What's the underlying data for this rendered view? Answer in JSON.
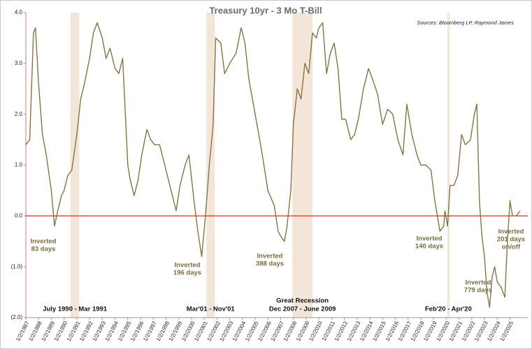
{
  "chart_data": {
    "type": "line",
    "title": "Treasury 10yr - 3 Mo T-Bill",
    "source": "Sources: Bloomberg LP, Raymond James",
    "x": [
      1987.0,
      1987.3,
      1987.6,
      1987.75,
      1988.0,
      1988.3,
      1988.6,
      1989.0,
      1989.25,
      1989.5,
      1989.8,
      1990.0,
      1990.3,
      1990.6,
      1991.0,
      1991.3,
      1991.6,
      1992.0,
      1992.3,
      1992.6,
      1993.0,
      1993.3,
      1993.6,
      1994.0,
      1994.3,
      1994.6,
      1995.0,
      1995.2,
      1995.5,
      1995.8,
      1996.1,
      1996.5,
      1996.8,
      1997.1,
      1997.5,
      1997.8,
      1998.1,
      1998.5,
      1998.8,
      1999.1,
      1999.5,
      1999.8,
      2000.2,
      2000.5,
      2000.8,
      2001.1,
      2001.4,
      2001.7,
      2001.9,
      2002.3,
      2002.6,
      2003.0,
      2003.5,
      2003.9,
      2004.2,
      2004.5,
      2005.0,
      2005.5,
      2006.0,
      2006.5,
      2006.8,
      2007.0,
      2007.3,
      2007.5,
      2007.8,
      2008.0,
      2008.3,
      2008.6,
      2008.9,
      2009.2,
      2009.5,
      2009.8,
      2010.0,
      2010.3,
      2010.6,
      2010.9,
      2011.2,
      2011.5,
      2011.8,
      2012.1,
      2012.5,
      2012.8,
      2013.1,
      2013.5,
      2013.9,
      2014.2,
      2014.6,
      2015.0,
      2015.4,
      2015.8,
      2016.2,
      2016.6,
      2016.9,
      2017.3,
      2017.7,
      2018.0,
      2018.4,
      2018.8,
      2019.1,
      2019.5,
      2019.8,
      2019.9,
      2020.1,
      2020.3,
      2020.6,
      2020.9,
      2021.2,
      2021.5,
      2021.9,
      2022.2,
      2022.4,
      2022.6,
      2022.8,
      2023.0,
      2023.2,
      2023.4,
      2023.6,
      2023.8,
      2024.0,
      2024.3,
      2024.6,
      2024.8,
      2025.0,
      2025.2,
      2025.5,
      2025.8
    ],
    "series": [
      {
        "name": "Treasury 10yr - 3 Mo T-Bill",
        "color": "#857443",
        "values": [
          1.4,
          1.5,
          3.6,
          3.7,
          2.6,
          1.6,
          1.2,
          0.5,
          -0.2,
          0.1,
          0.4,
          0.5,
          0.8,
          0.9,
          1.6,
          2.3,
          2.6,
          3.1,
          3.6,
          3.8,
          3.5,
          3.1,
          3.3,
          2.9,
          2.8,
          3.1,
          1.0,
          0.7,
          0.4,
          0.7,
          1.2,
          1.7,
          1.5,
          1.4,
          1.4,
          1.1,
          0.8,
          0.4,
          0.1,
          0.6,
          1.0,
          1.2,
          0.3,
          -0.3,
          -0.8,
          0.0,
          1.0,
          1.8,
          3.5,
          3.4,
          2.8,
          3.0,
          3.2,
          3.7,
          3.4,
          2.7,
          2.0,
          1.3,
          0.5,
          0.2,
          -0.3,
          -0.4,
          -0.5,
          -0.2,
          0.5,
          1.8,
          2.5,
          2.3,
          3.0,
          2.8,
          3.6,
          3.5,
          3.7,
          3.8,
          2.8,
          3.2,
          3.4,
          2.9,
          1.9,
          1.9,
          1.5,
          1.6,
          1.9,
          2.5,
          2.9,
          2.7,
          2.4,
          1.8,
          2.1,
          2.0,
          1.5,
          1.2,
          2.2,
          1.6,
          1.2,
          1.0,
          1.0,
          0.9,
          0.3,
          -0.3,
          -0.2,
          0.1,
          -0.2,
          0.6,
          0.6,
          0.8,
          1.6,
          1.4,
          1.5,
          2.0,
          2.2,
          0.3,
          -0.4,
          -0.8,
          -1.5,
          -1.8,
          -1.2,
          -1.0,
          -1.3,
          -1.4,
          -1.6,
          -0.5,
          0.3,
          0.0,
          0.0,
          0.1
        ]
      }
    ],
    "xlim": [
      1987,
      2026.4
    ],
    "xticks": [
      {
        "value": 1987,
        "label": "1/2/1987"
      },
      {
        "value": 1988,
        "label": "1/2/1988"
      },
      {
        "value": 1989,
        "label": "1/2/1989"
      },
      {
        "value": 1990,
        "label": "1/2/1990"
      },
      {
        "value": 1991,
        "label": "1/2/1991"
      },
      {
        "value": 1992,
        "label": "1/2/1992"
      },
      {
        "value": 1993,
        "label": "1/2/1993"
      },
      {
        "value": 1994,
        "label": "1/2/1994"
      },
      {
        "value": 1995,
        "label": "1/2/1995"
      },
      {
        "value": 1996,
        "label": "1/2/1996"
      },
      {
        "value": 1997,
        "label": "1/2/1997"
      },
      {
        "value": 1998,
        "label": "1/2/1998"
      },
      {
        "value": 1999,
        "label": "1/2/1999"
      },
      {
        "value": 2000,
        "label": "1/2/2000"
      },
      {
        "value": 2001,
        "label": "1/2/2001"
      },
      {
        "value": 2002,
        "label": "1/2/2002"
      },
      {
        "value": 2003,
        "label": "1/2/2003"
      },
      {
        "value": 2004,
        "label": "1/2/2004"
      },
      {
        "value": 2005,
        "label": "1/2/2005"
      },
      {
        "value": 2006,
        "label": "1/2/2006"
      },
      {
        "value": 2007,
        "label": "1/2/2007"
      },
      {
        "value": 2008,
        "label": "1/2/2008"
      },
      {
        "value": 2009,
        "label": "1/2/2009"
      },
      {
        "value": 2010,
        "label": "1/2/2010"
      },
      {
        "value": 2011,
        "label": "1/2/2011"
      },
      {
        "value": 2012,
        "label": "1/2/2012"
      },
      {
        "value": 2013,
        "label": "1/2/2013"
      },
      {
        "value": 2014,
        "label": "1/2/2014"
      },
      {
        "value": 2015,
        "label": "1/2/2015"
      },
      {
        "value": 2016,
        "label": "1/2/2016"
      },
      {
        "value": 2017,
        "label": "1/2/2017"
      },
      {
        "value": 2018,
        "label": "1/2/2018"
      },
      {
        "value": 2019,
        "label": "1/2/2019"
      },
      {
        "value": 2020,
        "label": "1/2/2020"
      },
      {
        "value": 2021,
        "label": "1/2/2021"
      },
      {
        "value": 2022,
        "label": "1/2/2022"
      },
      {
        "value": 2023,
        "label": "1/2/2023"
      },
      {
        "value": 2024,
        "label": "1/2/2024"
      },
      {
        "value": 2025,
        "label": "1/2/2025"
      }
    ],
    "ylim": [
      -2,
      4
    ],
    "yticks": [
      {
        "value": 4,
        "label": "4.0"
      },
      {
        "value": 3,
        "label": "3.0"
      },
      {
        "value": 2,
        "label": "2.0"
      },
      {
        "value": 1,
        "label": "1.0"
      },
      {
        "value": 0,
        "label": "0.0"
      },
      {
        "value": -1,
        "label": "(1.0)"
      },
      {
        "value": -2,
        "label": "(2.0)"
      }
    ],
    "negative_tick_color": "#c0202a",
    "zero_line_color": "#e01010",
    "shade_color": "#f3e6d8",
    "shaded_periods": [
      {
        "start": 1990.5,
        "end": 1991.2,
        "label_lines": [
          "July 1990 - Mar 1991"
        ]
      },
      {
        "start": 2001.17,
        "end": 2001.83,
        "label_lines": [
          "Mar'01 - Nov'01"
        ]
      },
      {
        "start": 2007.92,
        "end": 2009.5,
        "label_lines": [
          "Great Recession",
          "Dec 2007 - June 2009"
        ]
      },
      {
        "start": 2020.08,
        "end": 2020.25,
        "label_lines": [
          "Feb'20 - Apr'20"
        ]
      }
    ],
    "annotations": [
      {
        "lines": [
          "Inverted",
          "83 days"
        ]
      },
      {
        "lines": [
          "Inverted",
          "196 days"
        ]
      },
      {
        "lines": [
          "Inverted",
          "388 days"
        ]
      },
      {
        "lines": [
          "Inverted",
          "140 days"
        ]
      },
      {
        "lines": [
          "Inverted",
          "779 days"
        ]
      },
      {
        "lines": [
          "Inverted",
          "201 days",
          "on/off"
        ]
      }
    ]
  }
}
